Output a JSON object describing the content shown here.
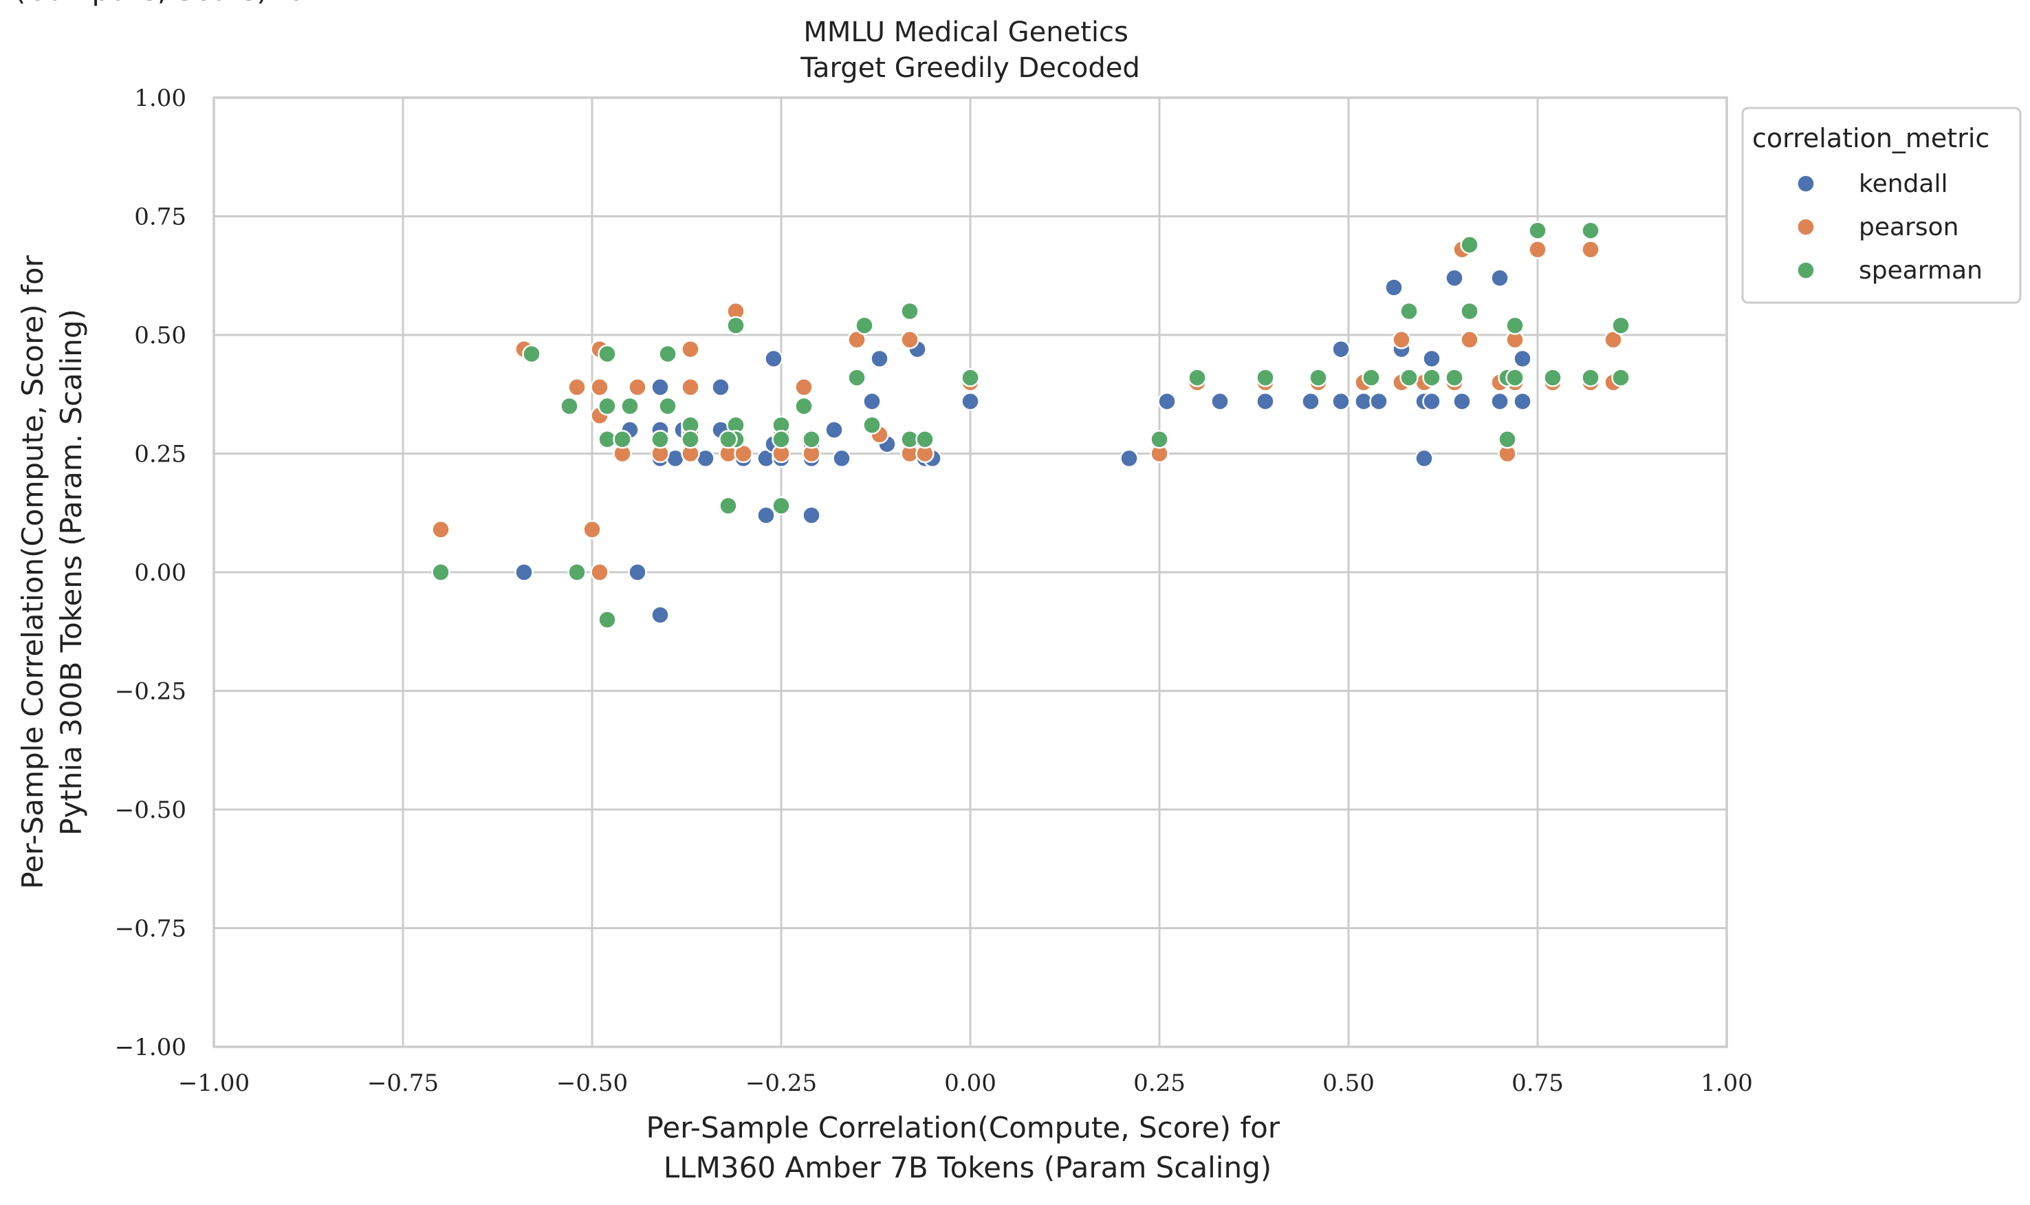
{
  "chart_data": {
    "type": "scatter",
    "title_lines": [
      "MMLU Medical Genetics",
      "Target Greedily Decoded"
    ],
    "xlabel_lines": [
      "Per-Sample Correlation(Compute, Score) for",
      "LLM360 Amber 7B Tokens (Param Scaling)"
    ],
    "ylabel_lines": [
      "Per-Sample Correlation(Compute, Score) for",
      "Pythia 300B Tokens (Param. Scaling)"
    ],
    "xlim": [
      -1.0,
      1.0
    ],
    "ylim": [
      -1.0,
      1.0
    ],
    "x_ticks": [
      -1.0,
      -0.75,
      -0.5,
      -0.25,
      0.0,
      0.25,
      0.5,
      0.75,
      1.0
    ],
    "x_tick_labels": [
      "−1.00",
      "−0.75",
      "−0.50",
      "−0.25",
      "0.00",
      "0.25",
      "0.50",
      "0.75",
      "1.00"
    ],
    "y_ticks": [
      1.0,
      0.75,
      0.5,
      0.25,
      0.0,
      -0.25,
      -0.5,
      -0.75,
      -1.0
    ],
    "y_tick_labels": [
      "1.00",
      "0.75",
      "0.50",
      "0.25",
      "0.00",
      "−0.25",
      "−0.50",
      "−0.75",
      "−1.00"
    ],
    "grid": true,
    "legend": {
      "title": "correlation_metric",
      "placement": "outside-top-right"
    },
    "series": [
      {
        "name": "kendall",
        "color": "#4c72b0",
        "points": [
          [
            -0.59,
            0.0
          ],
          [
            -0.49,
            0.39
          ],
          [
            -0.41,
            0.39
          ],
          [
            -0.45,
            0.3
          ],
          [
            -0.41,
            0.3
          ],
          [
            -0.41,
            0.24
          ],
          [
            -0.39,
            0.24
          ],
          [
            -0.38,
            0.3
          ],
          [
            -0.44,
            0.0
          ],
          [
            -0.41,
            -0.09
          ],
          [
            -0.37,
            0.3
          ],
          [
            -0.35,
            0.24
          ],
          [
            -0.33,
            0.39
          ],
          [
            -0.33,
            0.3
          ],
          [
            -0.3,
            0.24
          ],
          [
            -0.31,
            0.28
          ],
          [
            -0.27,
            0.24
          ],
          [
            -0.26,
            0.45
          ],
          [
            -0.26,
            0.27
          ],
          [
            -0.25,
            0.24
          ],
          [
            -0.27,
            0.12
          ],
          [
            -0.21,
            0.12
          ],
          [
            -0.21,
            0.24
          ],
          [
            -0.21,
            0.27
          ],
          [
            -0.18,
            0.3
          ],
          [
            -0.17,
            0.24
          ],
          [
            -0.13,
            0.36
          ],
          [
            -0.12,
            0.45
          ],
          [
            -0.11,
            0.27
          ],
          [
            -0.07,
            0.47
          ],
          [
            -0.06,
            0.24
          ],
          [
            -0.05,
            0.24
          ],
          [
            0.0,
            0.36
          ],
          [
            0.21,
            0.24
          ],
          [
            0.26,
            0.36
          ],
          [
            0.33,
            0.36
          ],
          [
            0.39,
            0.36
          ],
          [
            0.45,
            0.36
          ],
          [
            0.49,
            0.47
          ],
          [
            0.49,
            0.36
          ],
          [
            0.52,
            0.36
          ],
          [
            0.54,
            0.36
          ],
          [
            0.56,
            0.6
          ],
          [
            0.57,
            0.47
          ],
          [
            0.6,
            0.36
          ],
          [
            0.61,
            0.36
          ],
          [
            0.61,
            0.45
          ],
          [
            0.6,
            0.24
          ],
          [
            0.64,
            0.62
          ],
          [
            0.65,
            0.36
          ],
          [
            0.7,
            0.62
          ],
          [
            0.7,
            0.36
          ],
          [
            0.72,
            0.41
          ],
          [
            0.73,
            0.45
          ],
          [
            0.73,
            0.36
          ]
        ]
      },
      {
        "name": "pearson",
        "color": "#dd8452",
        "points": [
          [
            -0.7,
            0.09
          ],
          [
            -0.59,
            0.47
          ],
          [
            -0.52,
            0.39
          ],
          [
            -0.49,
            0.47
          ],
          [
            -0.49,
            0.39
          ],
          [
            -0.49,
            0.33
          ],
          [
            -0.5,
            0.09
          ],
          [
            -0.49,
            0.0
          ],
          [
            -0.46,
            0.25
          ],
          [
            -0.44,
            0.39
          ],
          [
            -0.41,
            0.25
          ],
          [
            -0.37,
            0.47
          ],
          [
            -0.37,
            0.39
          ],
          [
            -0.37,
            0.29
          ],
          [
            -0.37,
            0.25
          ],
          [
            -0.31,
            0.55
          ],
          [
            -0.32,
            0.25
          ],
          [
            -0.32,
            0.14
          ],
          [
            -0.3,
            0.25
          ],
          [
            -0.25,
            0.29
          ],
          [
            -0.25,
            0.25
          ],
          [
            -0.25,
            0.14
          ],
          [
            -0.22,
            0.39
          ],
          [
            -0.21,
            0.25
          ],
          [
            -0.15,
            0.49
          ],
          [
            -0.15,
            0.41
          ],
          [
            -0.12,
            0.29
          ],
          [
            -0.08,
            0.49
          ],
          [
            -0.08,
            0.25
          ],
          [
            -0.06,
            0.25
          ],
          [
            0.0,
            0.4
          ],
          [
            0.25,
            0.25
          ],
          [
            0.3,
            0.4
          ],
          [
            0.39,
            0.4
          ],
          [
            0.46,
            0.4
          ],
          [
            0.52,
            0.4
          ],
          [
            0.57,
            0.49
          ],
          [
            0.57,
            0.4
          ],
          [
            0.6,
            0.4
          ],
          [
            0.64,
            0.4
          ],
          [
            0.65,
            0.68
          ],
          [
            0.66,
            0.49
          ],
          [
            0.7,
            0.4
          ],
          [
            0.71,
            0.25
          ],
          [
            0.72,
            0.49
          ],
          [
            0.72,
            0.4
          ],
          [
            0.75,
            0.68
          ],
          [
            0.77,
            0.4
          ],
          [
            0.82,
            0.4
          ],
          [
            0.82,
            0.68
          ],
          [
            0.85,
            0.49
          ],
          [
            0.85,
            0.4
          ]
        ]
      },
      {
        "name": "spearman",
        "color": "#55a868",
        "points": [
          [
            -0.7,
            0.0
          ],
          [
            -0.58,
            0.46
          ],
          [
            -0.53,
            0.35
          ],
          [
            -0.52,
            0.0
          ],
          [
            -0.48,
            0.46
          ],
          [
            -0.48,
            0.35
          ],
          [
            -0.48,
            0.28
          ],
          [
            -0.46,
            0.28
          ],
          [
            -0.45,
            0.35
          ],
          [
            -0.48,
            -0.1
          ],
          [
            -0.4,
            0.46
          ],
          [
            -0.4,
            0.35
          ],
          [
            -0.41,
            0.28
          ],
          [
            -0.37,
            0.31
          ],
          [
            -0.37,
            0.28
          ],
          [
            -0.31,
            0.52
          ],
          [
            -0.31,
            0.31
          ],
          [
            -0.31,
            0.28
          ],
          [
            -0.32,
            0.28
          ],
          [
            -0.32,
            0.14
          ],
          [
            -0.25,
            0.31
          ],
          [
            -0.25,
            0.28
          ],
          [
            -0.25,
            0.14
          ],
          [
            -0.22,
            0.35
          ],
          [
            -0.21,
            0.28
          ],
          [
            -0.15,
            0.41
          ],
          [
            -0.14,
            0.52
          ],
          [
            -0.13,
            0.31
          ],
          [
            -0.08,
            0.55
          ],
          [
            -0.08,
            0.28
          ],
          [
            -0.06,
            0.28
          ],
          [
            0.0,
            0.41
          ],
          [
            0.25,
            0.28
          ],
          [
            0.3,
            0.41
          ],
          [
            0.39,
            0.41
          ],
          [
            0.46,
            0.41
          ],
          [
            0.53,
            0.41
          ],
          [
            0.58,
            0.55
          ],
          [
            0.58,
            0.41
          ],
          [
            0.61,
            0.41
          ],
          [
            0.64,
            0.41
          ],
          [
            0.66,
            0.69
          ],
          [
            0.66,
            0.55
          ],
          [
            0.71,
            0.41
          ],
          [
            0.71,
            0.28
          ],
          [
            0.72,
            0.52
          ],
          [
            0.72,
            0.41
          ],
          [
            0.75,
            0.72
          ],
          [
            0.77,
            0.41
          ],
          [
            0.82,
            0.72
          ],
          [
            0.82,
            0.41
          ],
          [
            0.86,
            0.52
          ],
          [
            0.86,
            0.41
          ]
        ]
      }
    ]
  }
}
